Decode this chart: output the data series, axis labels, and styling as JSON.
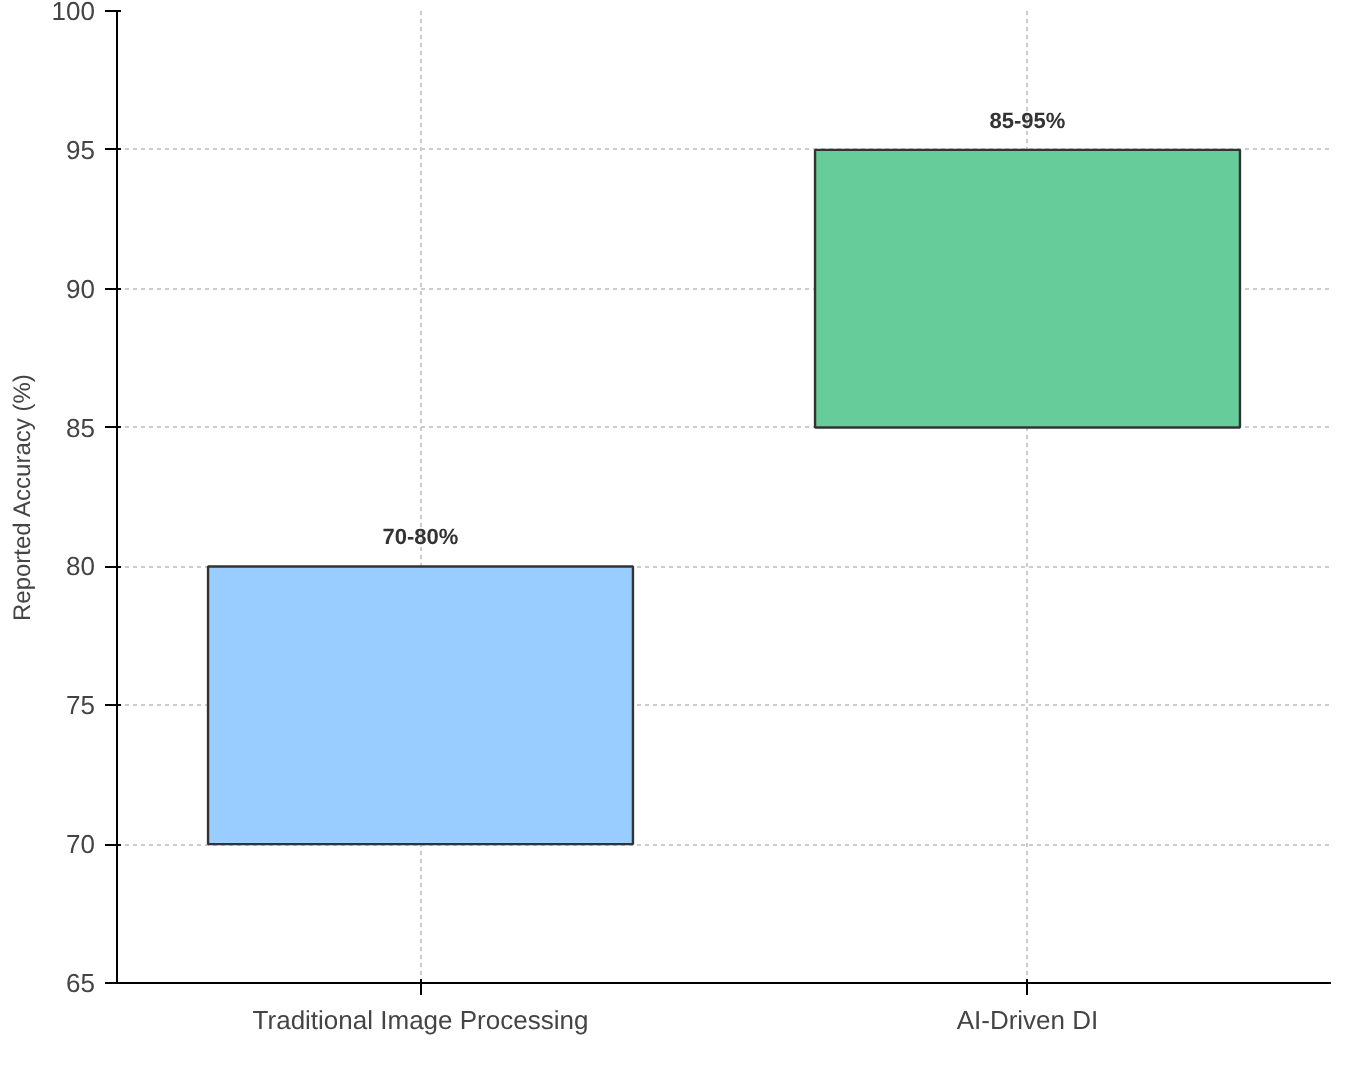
{
  "chart_data": {
    "type": "bar",
    "categories": [
      "Traditional Image Processing",
      "AI-Driven DI"
    ],
    "values": [
      10,
      10
    ],
    "base": [
      70,
      85
    ],
    "colors": [
      "#99ccff",
      "#66cc99"
    ],
    "annotations": [
      {
        "text": "70-80%",
        "x": "Traditional Image Processing",
        "y": 80
      },
      {
        "text": "85-95%",
        "x": "AI-Driven DI",
        "y": 95
      }
    ],
    "ylabel": "Reported Accuracy (%)",
    "ylim": [
      65,
      100
    ],
    "yticks": [
      65,
      70,
      75,
      80,
      85,
      90,
      95,
      100
    ],
    "grid": true
  }
}
